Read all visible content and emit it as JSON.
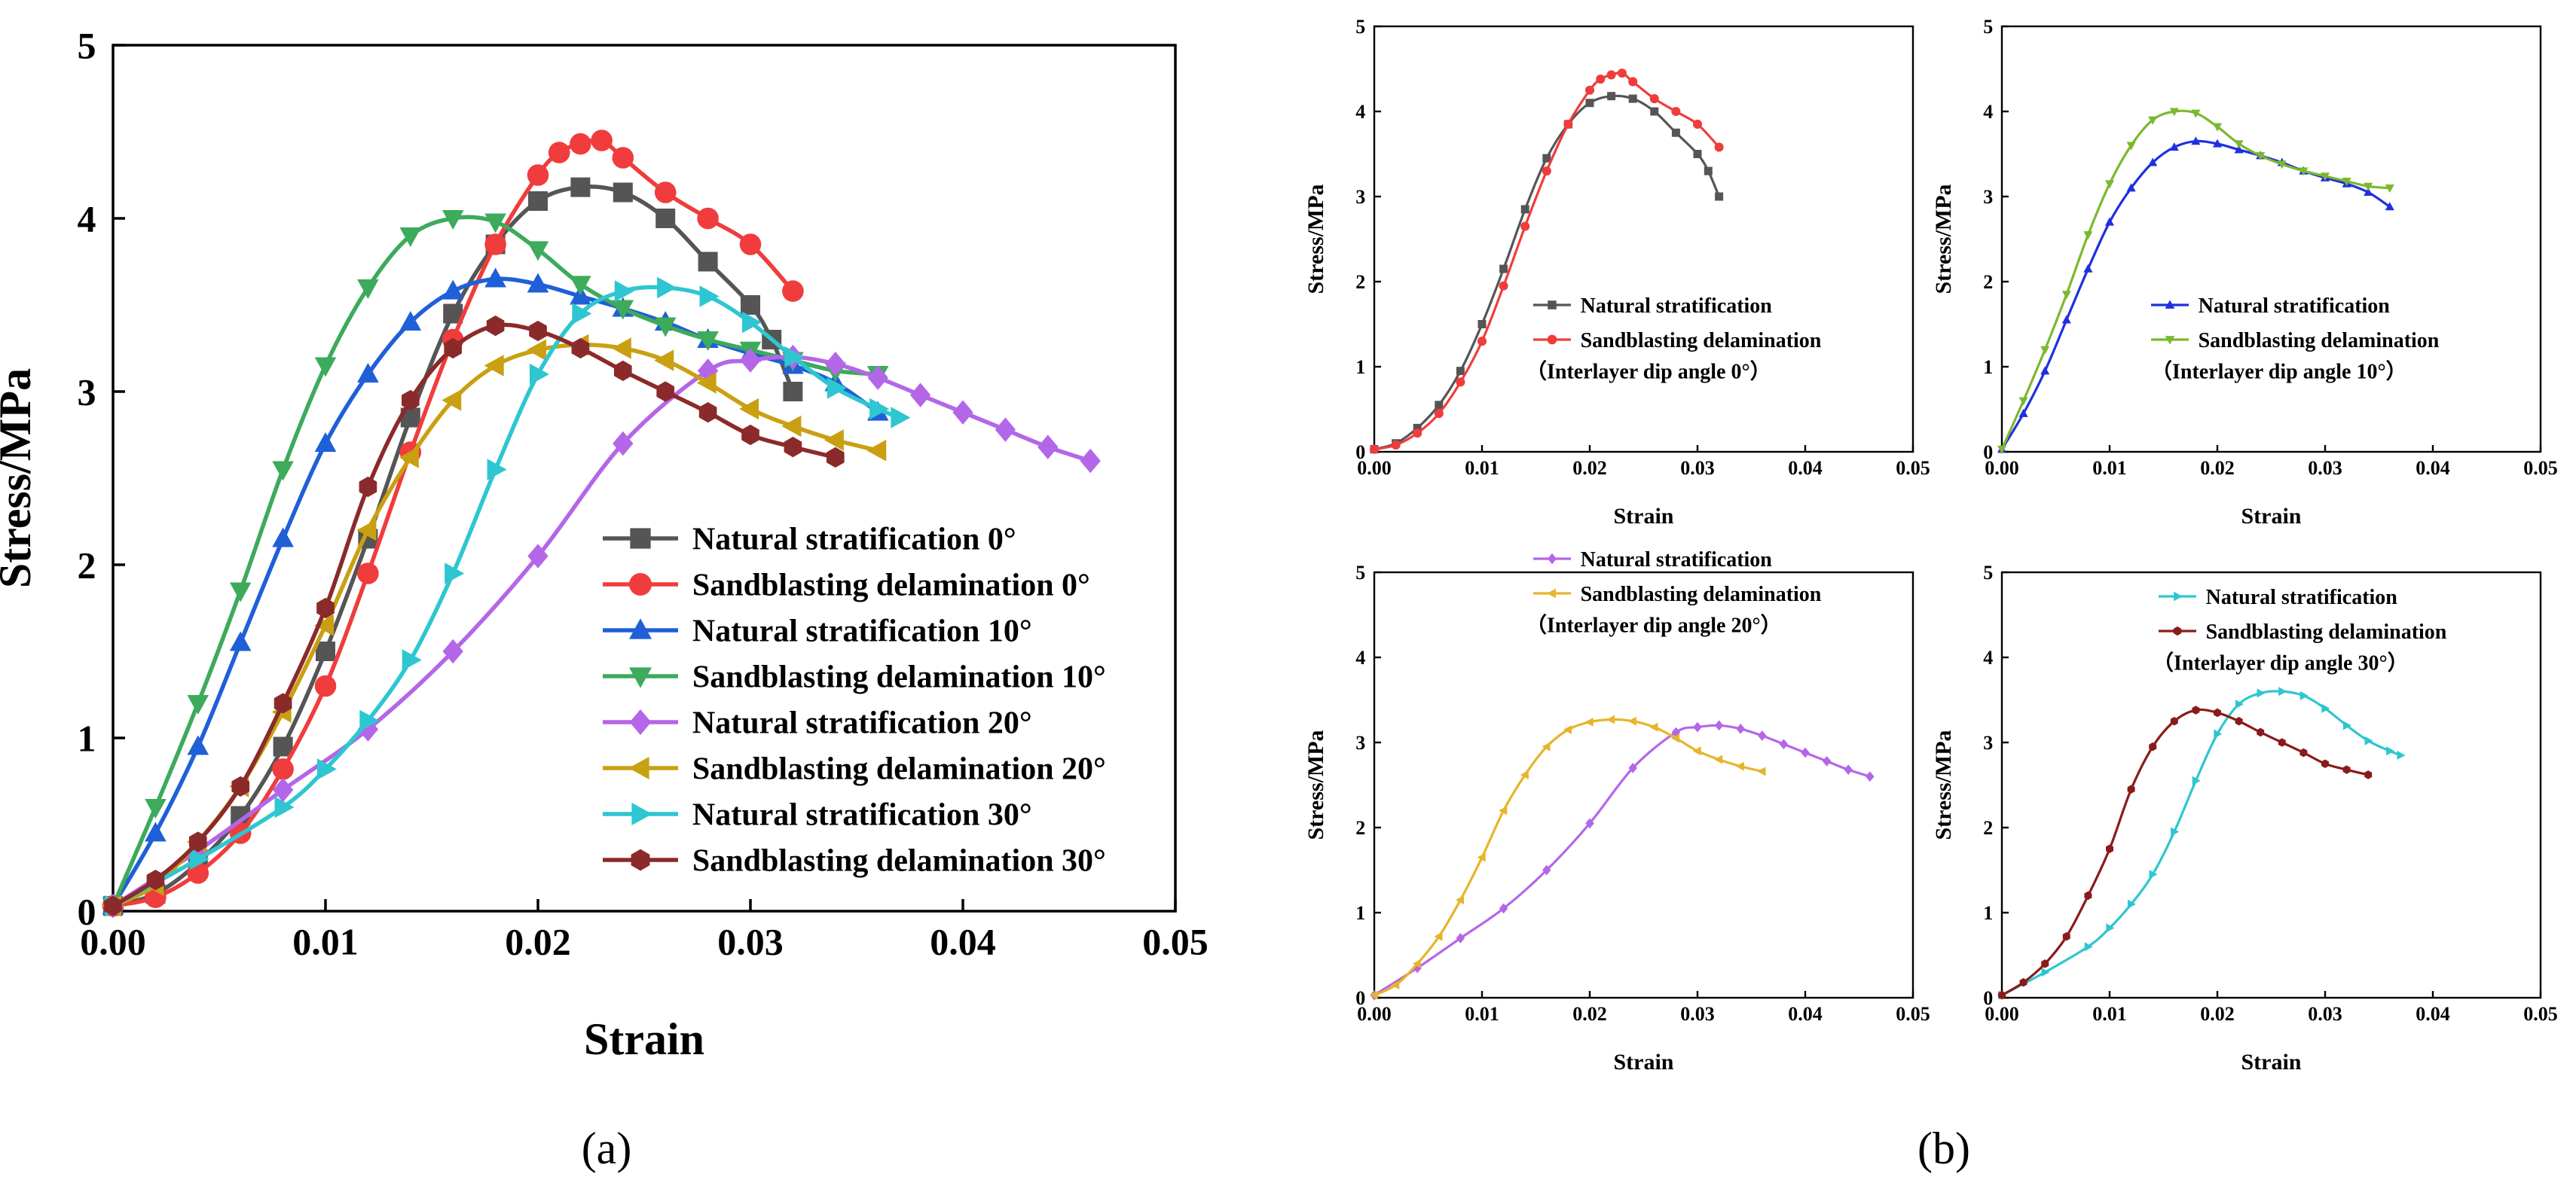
{
  "figure": {
    "panel_labels": [
      "(a)",
      "(b)"
    ]
  },
  "chart_data": [
    {
      "id": "a",
      "type": "line",
      "xlabel": "Strain",
      "ylabel": "Stress/MPa",
      "xlim": [
        0,
        0.05
      ],
      "ylim": [
        0,
        5
      ],
      "xticks": [
        "0.00",
        "0.01",
        "0.02",
        "0.03",
        "0.04",
        "0.05"
      ],
      "yticks": [
        "0",
        "1",
        "2",
        "3",
        "4",
        "5"
      ],
      "legend": "bottom-right",
      "series": [
        {
          "name": "Natural stratification 0°",
          "color": "#555555",
          "marker": "square",
          "x": [
            0,
            0.002,
            0.004,
            0.006,
            0.008,
            0.01,
            0.012,
            0.014,
            0.016,
            0.018,
            0.02,
            0.022,
            0.024,
            0.026,
            0.028,
            0.03,
            0.031,
            0.032
          ],
          "y": [
            0.03,
            0.1,
            0.28,
            0.55,
            0.95,
            1.5,
            2.15,
            2.85,
            3.45,
            3.85,
            4.1,
            4.18,
            4.15,
            4.0,
            3.75,
            3.5,
            3.3,
            3.0
          ]
        },
        {
          "name": "Sandblasting delamination 0°",
          "color": "#f03c3c",
          "marker": "circle",
          "x": [
            0,
            0.002,
            0.004,
            0.006,
            0.008,
            0.01,
            0.012,
            0.014,
            0.016,
            0.018,
            0.02,
            0.021,
            0.022,
            0.023,
            0.024,
            0.026,
            0.028,
            0.03,
            0.032
          ],
          "y": [
            0.03,
            0.08,
            0.22,
            0.45,
            0.82,
            1.3,
            1.95,
            2.65,
            3.3,
            3.85,
            4.25,
            4.38,
            4.43,
            4.45,
            4.35,
            4.15,
            4.0,
            3.85,
            3.58
          ]
        },
        {
          "name": "Natural stratification 10°",
          "color": "#1f5fd8",
          "marker": "triangle-up",
          "x": [
            0,
            0.002,
            0.004,
            0.006,
            0.008,
            0.01,
            0.012,
            0.014,
            0.016,
            0.018,
            0.02,
            0.022,
            0.024,
            0.026,
            0.028,
            0.03,
            0.032,
            0.034,
            0.036
          ],
          "y": [
            0.03,
            0.45,
            0.95,
            1.55,
            2.15,
            2.7,
            3.1,
            3.4,
            3.58,
            3.65,
            3.62,
            3.55,
            3.48,
            3.4,
            3.3,
            3.22,
            3.15,
            3.05,
            2.88
          ]
        },
        {
          "name": "Sandblasting delamination 10°",
          "color": "#3daa5c",
          "marker": "triangle-down",
          "x": [
            0,
            0.002,
            0.004,
            0.006,
            0.008,
            0.01,
            0.012,
            0.014,
            0.016,
            0.018,
            0.02,
            0.022,
            0.024,
            0.026,
            0.028,
            0.03,
            0.032,
            0.034,
            0.036
          ],
          "y": [
            0.03,
            0.6,
            1.2,
            1.85,
            2.55,
            3.15,
            3.6,
            3.9,
            4.0,
            3.98,
            3.82,
            3.62,
            3.48,
            3.38,
            3.3,
            3.24,
            3.18,
            3.12,
            3.1
          ]
        },
        {
          "name": "Natural stratification 20°",
          "color": "#b466e8",
          "marker": "diamond",
          "x": [
            0,
            0.004,
            0.008,
            0.012,
            0.016,
            0.02,
            0.024,
            0.028,
            0.03,
            0.032,
            0.034,
            0.036,
            0.038,
            0.04,
            0.042,
            0.044,
            0.046
          ],
          "y": [
            0.03,
            0.35,
            0.7,
            1.05,
            1.5,
            2.05,
            2.7,
            3.12,
            3.18,
            3.2,
            3.16,
            3.08,
            2.98,
            2.88,
            2.78,
            2.68,
            2.6
          ]
        },
        {
          "name": "Sandblasting delamination 20°",
          "color": "#c9a012",
          "marker": "triangle-left",
          "x": [
            0,
            0.002,
            0.004,
            0.006,
            0.008,
            0.01,
            0.012,
            0.014,
            0.016,
            0.018,
            0.02,
            0.022,
            0.024,
            0.026,
            0.028,
            0.03,
            0.032,
            0.034,
            0.036
          ],
          "y": [
            0.03,
            0.15,
            0.4,
            0.72,
            1.15,
            1.65,
            2.2,
            2.62,
            2.95,
            3.15,
            3.24,
            3.27,
            3.25,
            3.18,
            3.05,
            2.9,
            2.8,
            2.72,
            2.66
          ]
        },
        {
          "name": "Natural stratification 30°",
          "color": "#2ec6d0",
          "marker": "triangle-right",
          "x": [
            0,
            0.004,
            0.008,
            0.01,
            0.012,
            0.014,
            0.016,
            0.018,
            0.02,
            0.022,
            0.024,
            0.026,
            0.028,
            0.03,
            0.032,
            0.034,
            0.036,
            0.037
          ],
          "y": [
            0.03,
            0.3,
            0.6,
            0.82,
            1.1,
            1.45,
            1.95,
            2.55,
            3.1,
            3.45,
            3.58,
            3.6,
            3.55,
            3.4,
            3.2,
            3.02,
            2.9,
            2.85
          ]
        },
        {
          "name": "Sandblasting delamination 30°",
          "color": "#8b2a2a",
          "marker": "hexagon",
          "x": [
            0,
            0.002,
            0.004,
            0.006,
            0.008,
            0.01,
            0.012,
            0.014,
            0.016,
            0.018,
            0.02,
            0.022,
            0.024,
            0.026,
            0.028,
            0.03,
            0.032,
            0.034
          ],
          "y": [
            0.03,
            0.18,
            0.4,
            0.72,
            1.2,
            1.75,
            2.45,
            2.95,
            3.25,
            3.38,
            3.35,
            3.25,
            3.12,
            3.0,
            2.88,
            2.75,
            2.68,
            2.62
          ]
        }
      ]
    },
    {
      "id": "b1",
      "type": "line",
      "xlabel": "Strain",
      "ylabel": "Stress/MPa",
      "xlim": [
        0,
        0.05
      ],
      "ylim": [
        0,
        5
      ],
      "xticks": [
        "0.00",
        "0.01",
        "0.02",
        "0.03",
        "0.04",
        "0.05"
      ],
      "yticks": [
        "0",
        "1",
        "2",
        "3",
        "4",
        "5"
      ],
      "legend": "center",
      "annotation": "（Interlayer dip angle 0°）",
      "series": [
        {
          "name": "Natural stratification",
          "color": "#555555",
          "marker": "square",
          "x": [
            0,
            0.002,
            0.004,
            0.006,
            0.008,
            0.01,
            0.012,
            0.014,
            0.016,
            0.018,
            0.02,
            0.022,
            0.024,
            0.026,
            0.028,
            0.03,
            0.031,
            0.032
          ],
          "y": [
            0.03,
            0.1,
            0.28,
            0.55,
            0.95,
            1.5,
            2.15,
            2.85,
            3.45,
            3.85,
            4.1,
            4.18,
            4.15,
            4.0,
            3.75,
            3.5,
            3.3,
            3.0
          ]
        },
        {
          "name": "Sandblasting delamination",
          "color": "#f03c3c",
          "marker": "circle",
          "x": [
            0,
            0.002,
            0.004,
            0.006,
            0.008,
            0.01,
            0.012,
            0.014,
            0.016,
            0.018,
            0.02,
            0.021,
            0.022,
            0.023,
            0.024,
            0.026,
            0.028,
            0.03,
            0.032
          ],
          "y": [
            0.03,
            0.08,
            0.22,
            0.45,
            0.82,
            1.3,
            1.95,
            2.65,
            3.3,
            3.85,
            4.25,
            4.38,
            4.43,
            4.45,
            4.35,
            4.15,
            4.0,
            3.85,
            3.58
          ]
        }
      ]
    },
    {
      "id": "b2",
      "type": "line",
      "xlabel": "Strain",
      "ylabel": "Stress/MPa",
      "xlim": [
        0,
        0.05
      ],
      "ylim": [
        0,
        5
      ],
      "xticks": [
        "0.00",
        "0.01",
        "0.02",
        "0.03",
        "0.04",
        "0.05"
      ],
      "yticks": [
        "0",
        "1",
        "2",
        "3",
        "4",
        "5"
      ],
      "legend": "center-right",
      "annotation": "（Interlayer dip angle 10°）",
      "series": [
        {
          "name": "Natural stratification",
          "color": "#1f2fe0",
          "marker": "triangle-up",
          "x": [
            0,
            0.002,
            0.004,
            0.006,
            0.008,
            0.01,
            0.012,
            0.014,
            0.016,
            0.018,
            0.02,
            0.022,
            0.024,
            0.026,
            0.028,
            0.03,
            0.032,
            0.034,
            0.036
          ],
          "y": [
            0.03,
            0.45,
            0.95,
            1.55,
            2.15,
            2.7,
            3.1,
            3.4,
            3.58,
            3.65,
            3.62,
            3.55,
            3.48,
            3.4,
            3.3,
            3.22,
            3.15,
            3.05,
            2.88
          ]
        },
        {
          "name": "Sandblasting delamination",
          "color": "#7cb82f",
          "marker": "triangle-down",
          "x": [
            0,
            0.002,
            0.004,
            0.006,
            0.008,
            0.01,
            0.012,
            0.014,
            0.016,
            0.018,
            0.02,
            0.022,
            0.024,
            0.026,
            0.028,
            0.03,
            0.032,
            0.034,
            0.036
          ],
          "y": [
            0.03,
            0.6,
            1.2,
            1.85,
            2.55,
            3.15,
            3.6,
            3.9,
            4.0,
            3.98,
            3.82,
            3.62,
            3.48,
            3.38,
            3.3,
            3.24,
            3.18,
            3.12,
            3.1
          ]
        }
      ]
    },
    {
      "id": "b3",
      "type": "line",
      "xlabel": "Strain",
      "ylabel": "Stress/MPa",
      "xlim": [
        0,
        0.05
      ],
      "ylim": [
        0,
        5
      ],
      "xticks": [
        "0.00",
        "0.01",
        "0.02",
        "0.03",
        "0.04",
        "0.05"
      ],
      "yticks": [
        "0",
        "1",
        "2",
        "3",
        "4",
        "5"
      ],
      "legend": "top-right",
      "annotation": "（Interlayer dip angle 20°）",
      "series": [
        {
          "name": "Natural stratification",
          "color": "#b466e8",
          "marker": "diamond",
          "x": [
            0,
            0.004,
            0.008,
            0.012,
            0.016,
            0.02,
            0.024,
            0.028,
            0.03,
            0.032,
            0.034,
            0.036,
            0.038,
            0.04,
            0.042,
            0.044,
            0.046
          ],
          "y": [
            0.03,
            0.35,
            0.7,
            1.05,
            1.5,
            2.05,
            2.7,
            3.12,
            3.18,
            3.2,
            3.16,
            3.08,
            2.98,
            2.88,
            2.78,
            2.68,
            2.6
          ]
        },
        {
          "name": "Sandblasting delamination",
          "color": "#e6b52a",
          "marker": "triangle-left",
          "x": [
            0,
            0.002,
            0.004,
            0.006,
            0.008,
            0.01,
            0.012,
            0.014,
            0.016,
            0.018,
            0.02,
            0.022,
            0.024,
            0.026,
            0.028,
            0.03,
            0.032,
            0.034,
            0.036
          ],
          "y": [
            0.03,
            0.15,
            0.4,
            0.72,
            1.15,
            1.65,
            2.2,
            2.62,
            2.95,
            3.15,
            3.24,
            3.27,
            3.25,
            3.18,
            3.05,
            2.9,
            2.8,
            2.72,
            2.66
          ]
        }
      ]
    },
    {
      "id": "b4",
      "type": "line",
      "xlabel": "Strain",
      "ylabel": "Stress/MPa",
      "xlim": [
        0,
        0.05
      ],
      "ylim": [
        0,
        5
      ],
      "xticks": [
        "0.00",
        "0.01",
        "0.02",
        "0.03",
        "0.04",
        "0.05"
      ],
      "yticks": [
        "0",
        "1",
        "2",
        "3",
        "4",
        "5"
      ],
      "legend": "top-right",
      "annotation": "（Interlayer dip angle 30°）",
      "series": [
        {
          "name": "Natural stratification",
          "color": "#2ec6d0",
          "marker": "triangle-right",
          "x": [
            0,
            0.004,
            0.008,
            0.01,
            0.012,
            0.014,
            0.016,
            0.018,
            0.02,
            0.022,
            0.024,
            0.026,
            0.028,
            0.03,
            0.032,
            0.034,
            0.036,
            0.037
          ],
          "y": [
            0.03,
            0.3,
            0.6,
            0.82,
            1.1,
            1.45,
            1.95,
            2.55,
            3.1,
            3.45,
            3.58,
            3.6,
            3.55,
            3.4,
            3.2,
            3.02,
            2.9,
            2.85
          ]
        },
        {
          "name": "Sandblasting delamination",
          "color": "#8b1a1a",
          "marker": "hexagon",
          "x": [
            0,
            0.002,
            0.004,
            0.006,
            0.008,
            0.01,
            0.012,
            0.014,
            0.016,
            0.018,
            0.02,
            0.022,
            0.024,
            0.026,
            0.028,
            0.03,
            0.032,
            0.034
          ],
          "y": [
            0.03,
            0.18,
            0.4,
            0.72,
            1.2,
            1.75,
            2.45,
            2.95,
            3.25,
            3.38,
            3.35,
            3.25,
            3.12,
            3.0,
            2.88,
            2.75,
            2.68,
            2.62
          ]
        }
      ]
    }
  ]
}
